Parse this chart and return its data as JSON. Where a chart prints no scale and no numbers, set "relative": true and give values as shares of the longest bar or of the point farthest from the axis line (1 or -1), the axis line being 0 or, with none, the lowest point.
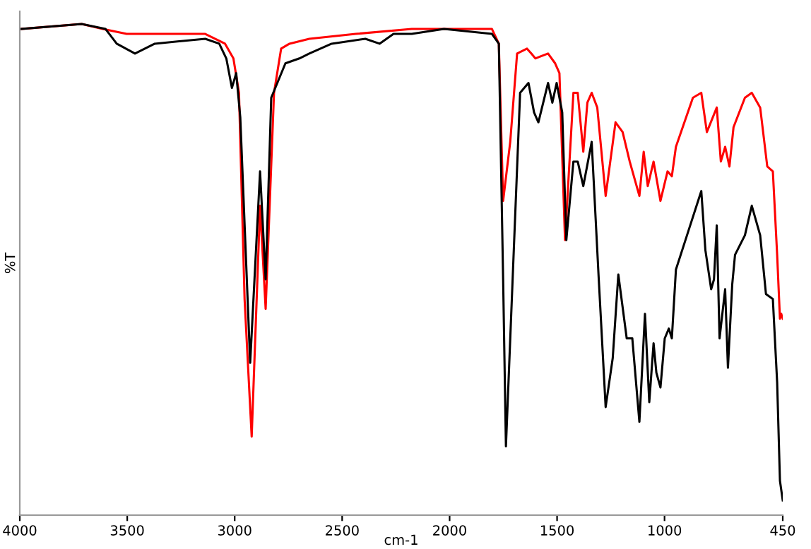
{
  "chart_data": {
    "type": "line",
    "xlabel": "cm-1",
    "ylabel": "%T",
    "relative": true,
    "tick_labels": "x",
    "grid": false,
    "marker": "none",
    "line_style": "solid",
    "xlim": [
      4000,
      450
    ],
    "xticks": [
      4000,
      3500,
      3000,
      2500,
      2000,
      1500,
      1000,
      450
    ],
    "series": [
      {
        "color": "#ff0000",
        "x": [
          3995,
          3712,
          3614,
          3503,
          3137,
          3045,
          3006,
          2980,
          2954,
          2921,
          2882,
          2856,
          2817,
          2784,
          2745,
          2653,
          2437,
          2176,
          2000,
          1803,
          1771,
          1751,
          1718,
          1686,
          1640,
          1620,
          1601,
          1542,
          1509,
          1489,
          1463,
          1424,
          1404,
          1378,
          1359,
          1339,
          1313,
          1274,
          1228,
          1195,
          1162,
          1117,
          1097,
          1078,
          1051,
          1019,
          986,
          966,
          947,
          868,
          829,
          803,
          757,
          738,
          718,
          698,
          679,
          626,
          594,
          555,
          522,
          496,
          476,
          463,
          457,
          450
        ],
        "values": [
          0.99,
          1.0,
          0.99,
          0.98,
          0.98,
          0.96,
          0.93,
          0.86,
          0.44,
          0.16,
          0.63,
          0.42,
          0.86,
          0.95,
          0.96,
          0.97,
          0.98,
          0.99,
          0.99,
          0.99,
          0.96,
          0.64,
          0.76,
          0.94,
          0.95,
          0.94,
          0.93,
          0.94,
          0.92,
          0.9,
          0.56,
          0.86,
          0.86,
          0.74,
          0.84,
          0.86,
          0.83,
          0.65,
          0.8,
          0.78,
          0.72,
          0.65,
          0.74,
          0.67,
          0.72,
          0.64,
          0.7,
          0.69,
          0.75,
          0.85,
          0.86,
          0.78,
          0.83,
          0.72,
          0.75,
          0.71,
          0.79,
          0.85,
          0.86,
          0.83,
          0.71,
          0.7,
          0.53,
          0.4,
          0.41,
          0.4
        ]
      },
      {
        "color": "#000000",
        "x": [
          3995,
          3712,
          3601,
          3549,
          3464,
          3372,
          3137,
          3072,
          3039,
          3013,
          2993,
          2974,
          2928,
          2882,
          2856,
          2830,
          2764,
          2699,
          2653,
          2549,
          2392,
          2326,
          2261,
          2176,
          2026,
          1803,
          1771,
          1751,
          1738,
          1705,
          1672,
          1633,
          1607,
          1587,
          1542,
          1522,
          1502,
          1476,
          1457,
          1424,
          1404,
          1378,
          1339,
          1306,
          1274,
          1241,
          1215,
          1176,
          1150,
          1117,
          1091,
          1071,
          1051,
          1038,
          1019,
          999,
          980,
          966,
          947,
          888,
          829,
          810,
          783,
          770,
          757,
          744,
          718,
          705,
          685,
          672,
          626,
          594,
          555,
          528,
          496,
          476,
          463,
          450
        ],
        "values": [
          0.99,
          1.0,
          0.99,
          0.96,
          0.94,
          0.96,
          0.97,
          0.96,
          0.93,
          0.87,
          0.9,
          0.81,
          0.31,
          0.7,
          0.48,
          0.85,
          0.92,
          0.93,
          0.94,
          0.96,
          0.97,
          0.96,
          0.98,
          0.98,
          0.99,
          0.98,
          0.96,
          0.48,
          0.14,
          0.5,
          0.86,
          0.88,
          0.82,
          0.8,
          0.88,
          0.84,
          0.88,
          0.82,
          0.56,
          0.72,
          0.72,
          0.67,
          0.76,
          0.48,
          0.22,
          0.32,
          0.49,
          0.36,
          0.36,
          0.19,
          0.41,
          0.23,
          0.35,
          0.29,
          0.26,
          0.36,
          0.38,
          0.36,
          0.5,
          0.58,
          0.66,
          0.54,
          0.46,
          0.48,
          0.59,
          0.36,
          0.46,
          0.3,
          0.47,
          0.53,
          0.57,
          0.63,
          0.57,
          0.45,
          0.44,
          0.27,
          0.07,
          0.03
        ]
      }
    ]
  }
}
